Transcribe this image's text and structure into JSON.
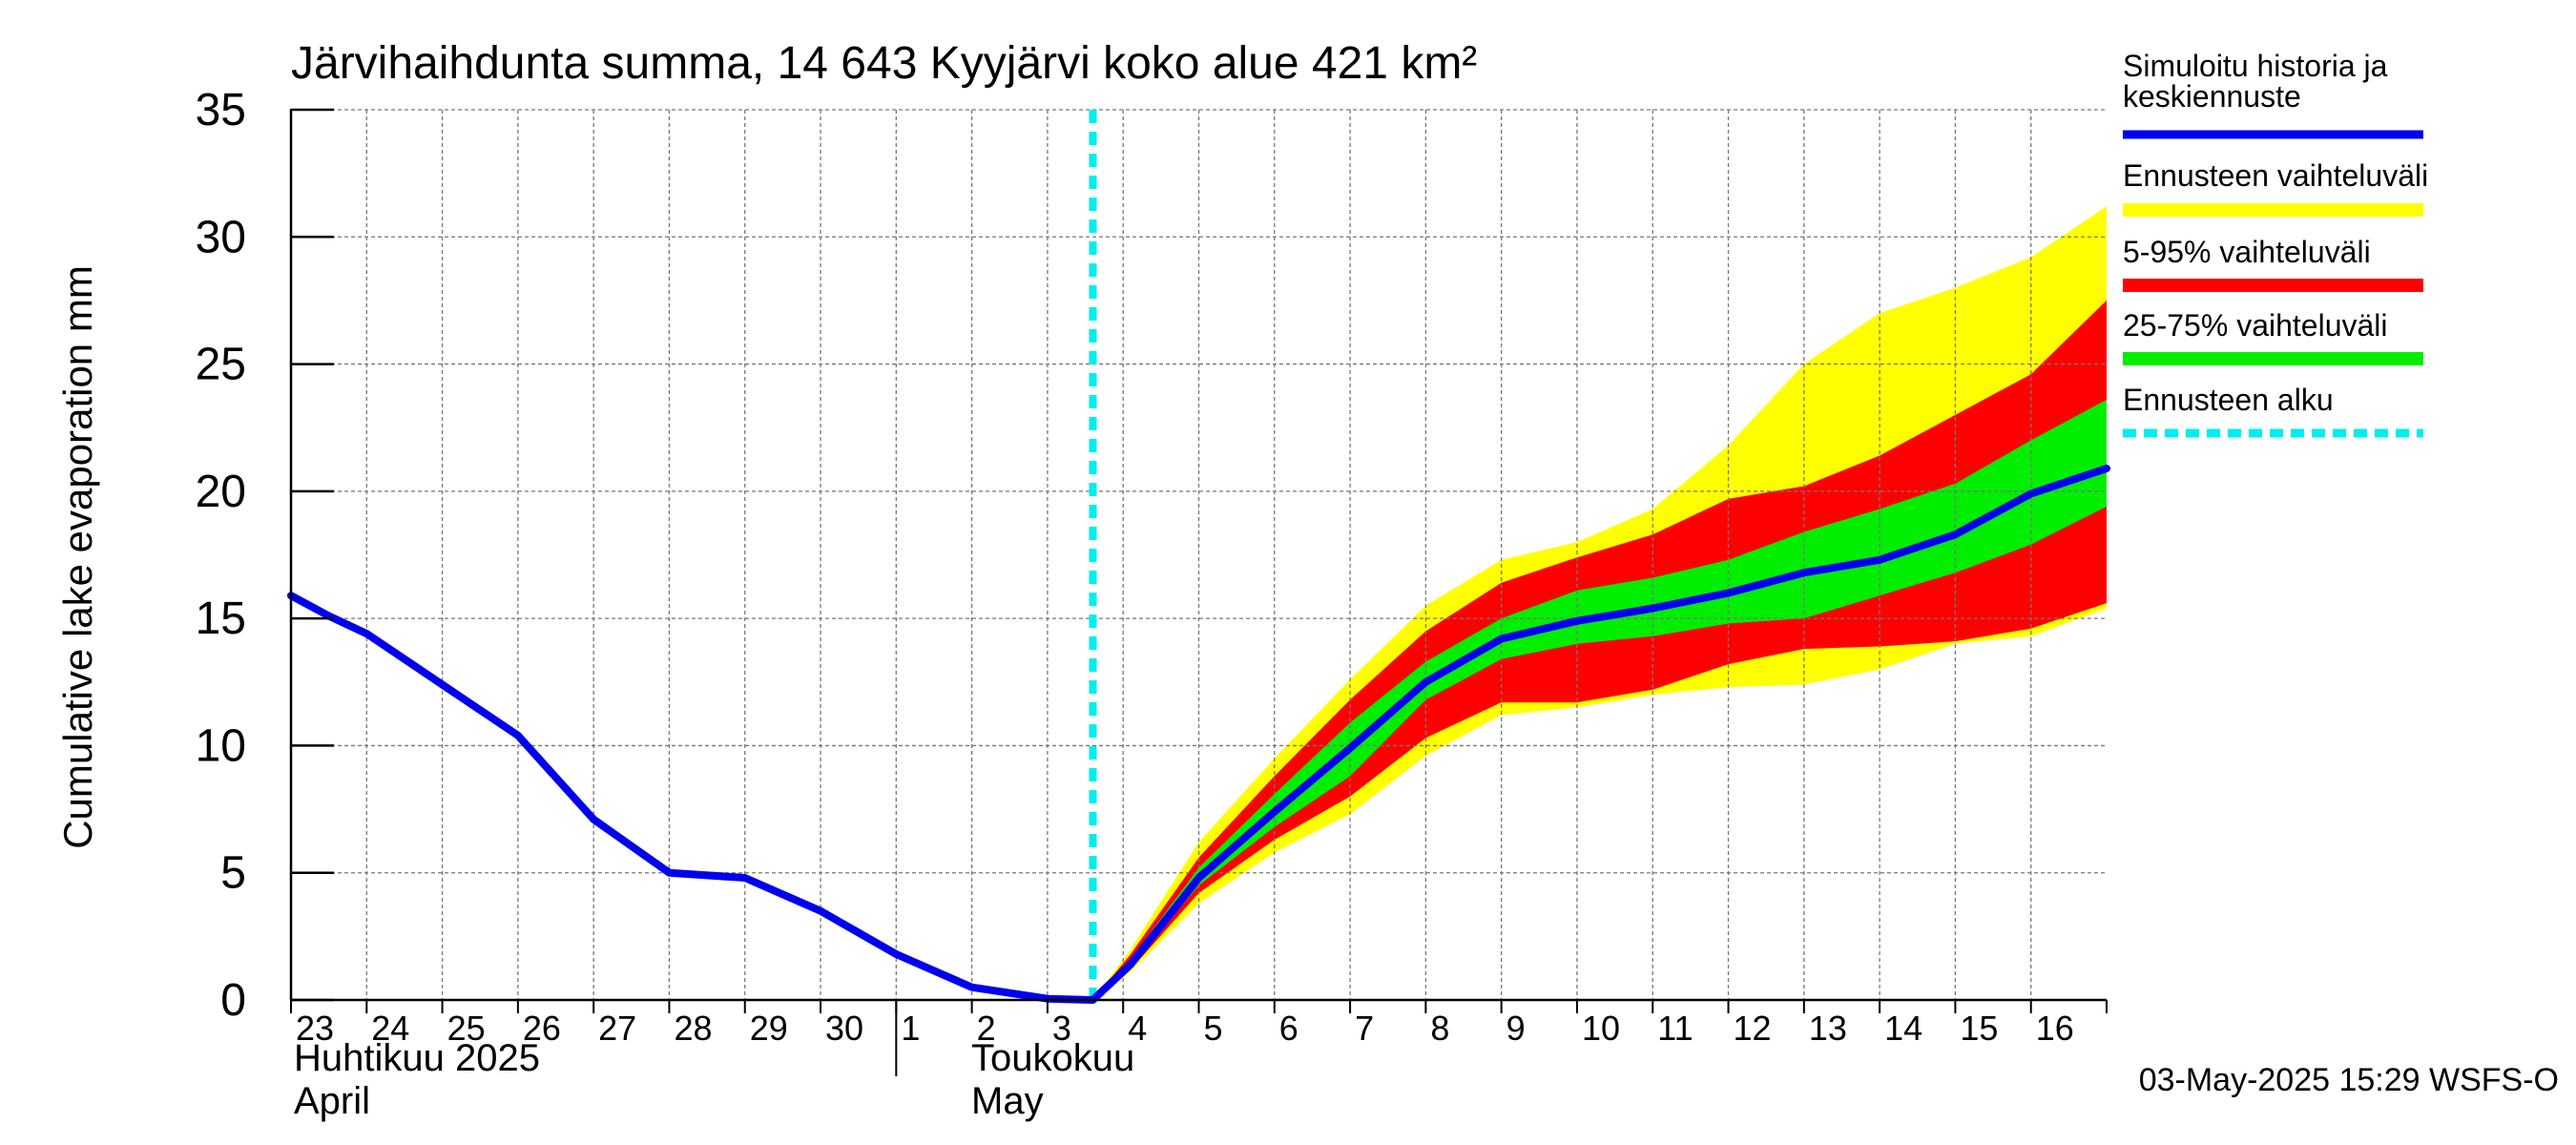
{
  "chart_data": {
    "type": "area",
    "title": "Järvihaihdunta summa, 14 643 Kyyjärvi koko alue 421 km²",
    "ylabel": "Cumulative lake evaporation   mm",
    "xlabel": "",
    "ylim": [
      0,
      35
    ],
    "yticks": [
      "0",
      "5",
      "10",
      "15",
      "20",
      "25",
      "30",
      "35"
    ],
    "x_days": [
      "23",
      "24",
      "25",
      "26",
      "27",
      "28",
      "29",
      "30",
      "1",
      "2",
      "3",
      "4",
      "5",
      "6",
      "7",
      "8",
      "9",
      "10",
      "11",
      "12",
      "13",
      "14",
      "15",
      "16"
    ],
    "month_labels": {
      "april_fi": "Huhtikuu  2025",
      "april_en": "April",
      "may_fi": "Toukokuu",
      "may_en": "May"
    },
    "grid": true,
    "legend_position": "right",
    "forecast_start_x": 10.6,
    "series": [
      {
        "name": "Simuloitu historia ja keskiennuste",
        "color": "#0000ee",
        "x": [
          0,
          0.5,
          1,
          2,
          3,
          4,
          5,
          6,
          7,
          8,
          9,
          10,
          10.6,
          11.1,
          12,
          13,
          14,
          15,
          16,
          17,
          18,
          19,
          20,
          21,
          22,
          23,
          24
        ],
        "y": [
          15.9,
          15.1,
          14.4,
          12.4,
          10.4,
          7.1,
          5.0,
          4.8,
          3.5,
          1.8,
          0.5,
          0.05,
          0.0,
          1.4,
          4.8,
          7.4,
          9.9,
          12.5,
          14.2,
          14.9,
          15.4,
          16.0,
          16.8,
          17.3,
          18.3,
          19.9,
          20.9
        ]
      },
      {
        "name": "Ennusteen vaihteluväli",
        "color": "#ffff00",
        "x": [
          10.6,
          11.1,
          12,
          13,
          14,
          15,
          16,
          17,
          18,
          19,
          20,
          21,
          22,
          23,
          24
        ],
        "upper": [
          0.0,
          2.0,
          6.2,
          9.5,
          12.6,
          15.5,
          17.3,
          18.0,
          19.3,
          21.8,
          25.0,
          27.0,
          28.0,
          29.2,
          31.2
        ],
        "lower": [
          0.0,
          1.1,
          3.8,
          5.8,
          7.3,
          9.6,
          11.2,
          11.5,
          12.0,
          12.3,
          12.4,
          13.0,
          14.0,
          14.3,
          15.4
        ]
      },
      {
        "name": "5-95% vaihteluväli",
        "color": "#ff0000",
        "x": [
          10.6,
          11.1,
          12,
          13,
          14,
          15,
          16,
          17,
          18,
          19,
          20,
          21,
          22,
          23,
          24
        ],
        "upper": [
          0.0,
          1.8,
          5.6,
          8.8,
          11.8,
          14.5,
          16.4,
          17.4,
          18.3,
          19.7,
          20.2,
          21.4,
          23.0,
          24.6,
          27.5
        ],
        "lower": [
          0.0,
          1.2,
          4.2,
          6.3,
          8.0,
          10.3,
          11.7,
          11.7,
          12.2,
          13.2,
          13.8,
          13.9,
          14.1,
          14.6,
          15.6
        ]
      },
      {
        "name": "25-75% vaihteluväli",
        "color": "#00ee00",
        "x": [
          10.6,
          11.1,
          12,
          13,
          14,
          15,
          16,
          17,
          18,
          19,
          20,
          21,
          22,
          23,
          24
        ],
        "upper": [
          0.0,
          1.6,
          5.2,
          8.1,
          10.9,
          13.3,
          15.0,
          16.1,
          16.6,
          17.3,
          18.4,
          19.3,
          20.3,
          22.0,
          23.6
        ],
        "lower": [
          0.0,
          1.3,
          4.5,
          6.8,
          8.8,
          11.8,
          13.4,
          14.0,
          14.3,
          14.8,
          15.0,
          15.9,
          16.8,
          17.9,
          19.4
        ]
      },
      {
        "name": "Ennusteen alku",
        "color": "#00eeee"
      }
    ],
    "timestamp": "03-May-2025 15:29 WSFS-O"
  }
}
